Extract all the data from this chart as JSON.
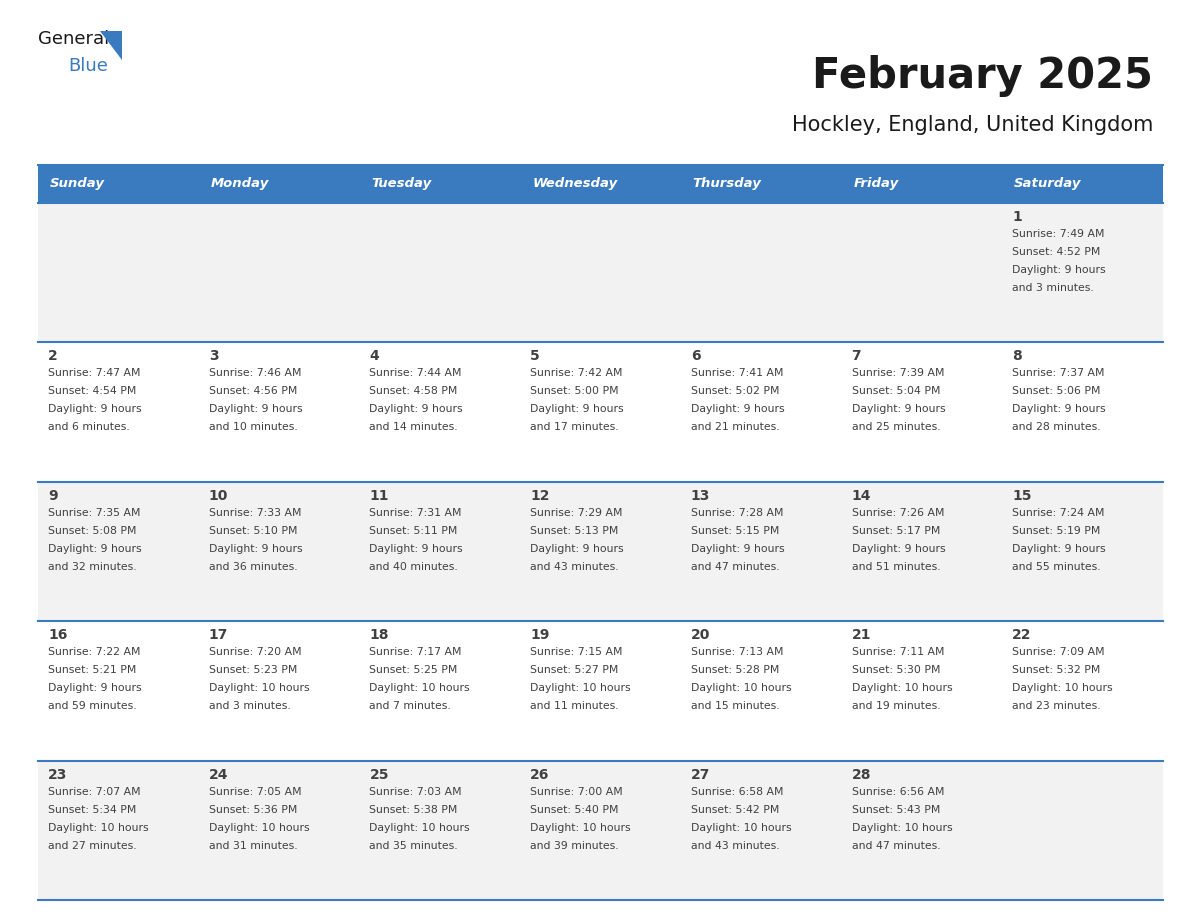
{
  "title": "February 2025",
  "subtitle": "Hockley, England, United Kingdom",
  "days_of_week": [
    "Sunday",
    "Monday",
    "Tuesday",
    "Wednesday",
    "Thursday",
    "Friday",
    "Saturday"
  ],
  "header_bg": "#3a7abf",
  "header_text": "#ffffff",
  "row_bg": [
    "#f2f2f2",
    "#ffffff",
    "#f2f2f2",
    "#ffffff",
    "#f2f2f2"
  ],
  "separator_color": "#3a7abf",
  "text_color": "#404040",
  "calendar_data": [
    [
      null,
      null,
      null,
      null,
      null,
      null,
      {
        "day": 1,
        "sunrise": "7:49 AM",
        "sunset": "4:52 PM",
        "daylight": "9 hours and 3 minutes."
      }
    ],
    [
      {
        "day": 2,
        "sunrise": "7:47 AM",
        "sunset": "4:54 PM",
        "daylight": "9 hours and 6 minutes."
      },
      {
        "day": 3,
        "sunrise": "7:46 AM",
        "sunset": "4:56 PM",
        "daylight": "9 hours and 10 minutes."
      },
      {
        "day": 4,
        "sunrise": "7:44 AM",
        "sunset": "4:58 PM",
        "daylight": "9 hours and 14 minutes."
      },
      {
        "day": 5,
        "sunrise": "7:42 AM",
        "sunset": "5:00 PM",
        "daylight": "9 hours and 17 minutes."
      },
      {
        "day": 6,
        "sunrise": "7:41 AM",
        "sunset": "5:02 PM",
        "daylight": "9 hours and 21 minutes."
      },
      {
        "day": 7,
        "sunrise": "7:39 AM",
        "sunset": "5:04 PM",
        "daylight": "9 hours and 25 minutes."
      },
      {
        "day": 8,
        "sunrise": "7:37 AM",
        "sunset": "5:06 PM",
        "daylight": "9 hours and 28 minutes."
      }
    ],
    [
      {
        "day": 9,
        "sunrise": "7:35 AM",
        "sunset": "5:08 PM",
        "daylight": "9 hours and 32 minutes."
      },
      {
        "day": 10,
        "sunrise": "7:33 AM",
        "sunset": "5:10 PM",
        "daylight": "9 hours and 36 minutes."
      },
      {
        "day": 11,
        "sunrise": "7:31 AM",
        "sunset": "5:11 PM",
        "daylight": "9 hours and 40 minutes."
      },
      {
        "day": 12,
        "sunrise": "7:29 AM",
        "sunset": "5:13 PM",
        "daylight": "9 hours and 43 minutes."
      },
      {
        "day": 13,
        "sunrise": "7:28 AM",
        "sunset": "5:15 PM",
        "daylight": "9 hours and 47 minutes."
      },
      {
        "day": 14,
        "sunrise": "7:26 AM",
        "sunset": "5:17 PM",
        "daylight": "9 hours and 51 minutes."
      },
      {
        "day": 15,
        "sunrise": "7:24 AM",
        "sunset": "5:19 PM",
        "daylight": "9 hours and 55 minutes."
      }
    ],
    [
      {
        "day": 16,
        "sunrise": "7:22 AM",
        "sunset": "5:21 PM",
        "daylight": "9 hours and 59 minutes."
      },
      {
        "day": 17,
        "sunrise": "7:20 AM",
        "sunset": "5:23 PM",
        "daylight": "10 hours and 3 minutes."
      },
      {
        "day": 18,
        "sunrise": "7:17 AM",
        "sunset": "5:25 PM",
        "daylight": "10 hours and 7 minutes."
      },
      {
        "day": 19,
        "sunrise": "7:15 AM",
        "sunset": "5:27 PM",
        "daylight": "10 hours and 11 minutes."
      },
      {
        "day": 20,
        "sunrise": "7:13 AM",
        "sunset": "5:28 PM",
        "daylight": "10 hours and 15 minutes."
      },
      {
        "day": 21,
        "sunrise": "7:11 AM",
        "sunset": "5:30 PM",
        "daylight": "10 hours and 19 minutes."
      },
      {
        "day": 22,
        "sunrise": "7:09 AM",
        "sunset": "5:32 PM",
        "daylight": "10 hours and 23 minutes."
      }
    ],
    [
      {
        "day": 23,
        "sunrise": "7:07 AM",
        "sunset": "5:34 PM",
        "daylight": "10 hours and 27 minutes."
      },
      {
        "day": 24,
        "sunrise": "7:05 AM",
        "sunset": "5:36 PM",
        "daylight": "10 hours and 31 minutes."
      },
      {
        "day": 25,
        "sunrise": "7:03 AM",
        "sunset": "5:38 PM",
        "daylight": "10 hours and 35 minutes."
      },
      {
        "day": 26,
        "sunrise": "7:00 AM",
        "sunset": "5:40 PM",
        "daylight": "10 hours and 39 minutes."
      },
      {
        "day": 27,
        "sunrise": "6:58 AM",
        "sunset": "5:42 PM",
        "daylight": "10 hours and 43 minutes."
      },
      {
        "day": 28,
        "sunrise": "6:56 AM",
        "sunset": "5:43 PM",
        "daylight": "10 hours and 47 minutes."
      },
      null
    ]
  ]
}
